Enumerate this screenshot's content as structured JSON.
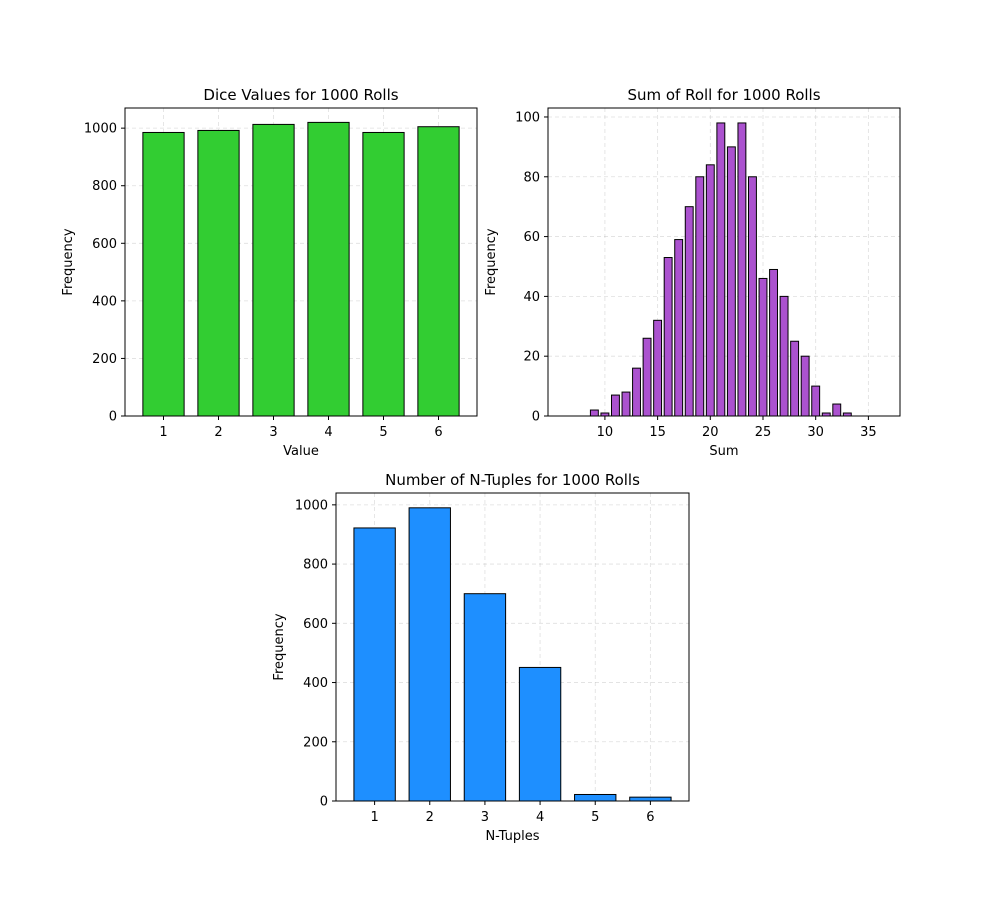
{
  "chart_data": [
    {
      "type": "bar",
      "title": "Dice Values for 1000 Rolls",
      "xlabel": "Value",
      "ylabel": "Frequency",
      "categories": [
        1,
        2,
        3,
        4,
        5,
        6
      ],
      "values": [
        985,
        992,
        1013,
        1020,
        985,
        1005
      ],
      "xlim": [
        0.3,
        6.7
      ],
      "ylim": [
        0,
        1070
      ],
      "xticks": [
        1,
        2,
        3,
        4,
        5,
        6
      ],
      "yticks": [
        0,
        200,
        400,
        600,
        800,
        1000
      ],
      "bar_width": 0.75,
      "color": "#32cd32",
      "grid": true
    },
    {
      "type": "bar",
      "title": "Sum of Roll for 1000 Rolls",
      "xlabel": "Sum",
      "ylabel": "Frequency",
      "categories": [
        6,
        7,
        8,
        9,
        10,
        11,
        12,
        13,
        14,
        15,
        16,
        17,
        18,
        19,
        20,
        21,
        22,
        23,
        24,
        25,
        26,
        27,
        28,
        29,
        30,
        31,
        32,
        33,
        34,
        35,
        36
      ],
      "values": [
        0,
        0,
        0,
        2,
        1,
        7,
        8,
        16,
        26,
        32,
        53,
        59,
        70,
        80,
        84,
        98,
        90,
        98,
        80,
        46,
        49,
        40,
        25,
        20,
        10,
        1,
        4,
        1,
        0,
        0,
        0
      ],
      "xlim": [
        4.6,
        38.0
      ],
      "ylim": [
        0,
        103
      ],
      "xticks": [
        10,
        15,
        20,
        25,
        30,
        35
      ],
      "yticks": [
        0,
        20,
        40,
        60,
        80,
        100
      ],
      "bar_width": 0.75,
      "color": "#ab52cf",
      "grid": true
    },
    {
      "type": "bar",
      "title": "Number of N-Tuples for 1000 Rolls",
      "xlabel": "N-Tuples",
      "ylabel": "Frequency",
      "categories": [
        1,
        2,
        3,
        4,
        5,
        6
      ],
      "values": [
        922,
        990,
        700,
        451,
        22,
        13
      ],
      "xlim": [
        0.3,
        6.7
      ],
      "ylim": [
        0,
        1040
      ],
      "xticks": [
        1,
        2,
        3,
        4,
        5,
        6
      ],
      "yticks": [
        0,
        200,
        400,
        600,
        800,
        1000
      ],
      "bar_width": 0.75,
      "color": "#1e8fff",
      "grid": true
    }
  ]
}
